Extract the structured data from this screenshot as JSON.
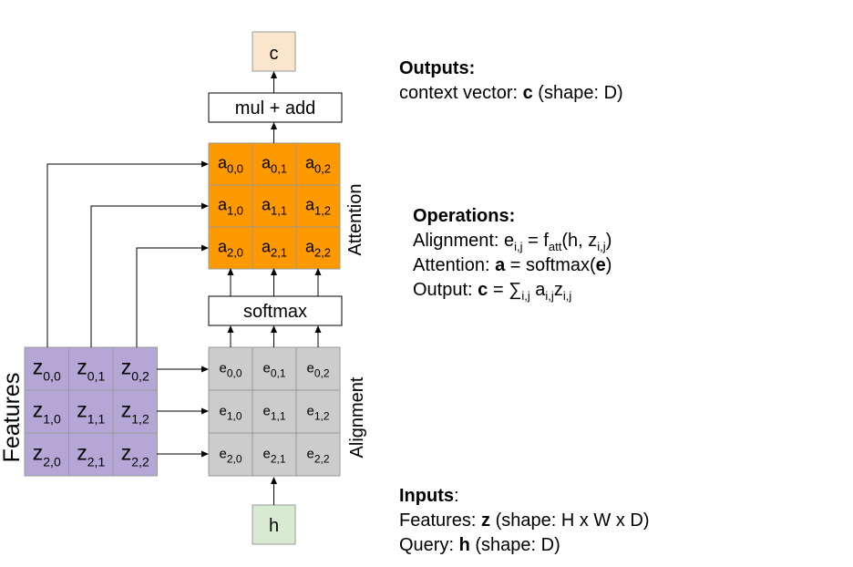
{
  "nodes": {
    "c": "c",
    "h": "h",
    "mul_add": "mul + add",
    "softmax": "softmax"
  },
  "side_labels": {
    "attention": "Attention",
    "alignment": "Alignment",
    "features": "Features"
  },
  "grids": {
    "attention": {
      "letter": "a",
      "subs": [
        [
          "0,0",
          "0,1",
          "0,2"
        ],
        [
          "1,0",
          "1,1",
          "1,2"
        ],
        [
          "2,0",
          "2,1",
          "2,2"
        ]
      ],
      "fill": "#ff9900"
    },
    "alignment": {
      "letter": "e",
      "subs": [
        [
          "0,0",
          "0,1",
          "0,2"
        ],
        [
          "1,0",
          "1,1",
          "1,2"
        ],
        [
          "2,0",
          "2,1",
          "2,2"
        ]
      ],
      "fill": "#cccccc"
    },
    "features": {
      "letter": "z",
      "subs": [
        [
          "0,0",
          "0,1",
          "0,2"
        ],
        [
          "1,0",
          "1,1",
          "1,2"
        ],
        [
          "2,0",
          "2,1",
          "2,2"
        ]
      ],
      "fill": "#b4a7d6"
    }
  },
  "colors": {
    "c_box": "#fce5cd",
    "h_box": "#d9ead3",
    "stroke": "#999999"
  },
  "outputs": {
    "heading": "Outputs:",
    "prefix": "context vector: ",
    "var": "c",
    "suffix": " (shape: D)"
  },
  "operations": {
    "heading": "Operations:",
    "align_prefix": "Alignment: e",
    "align_sub1": "i,j",
    "align_mid": " = f",
    "align_sub2": "att",
    "align_mid2": "(h, z",
    "align_sub3": "i,j",
    "align_end": ")",
    "attn_prefix": "Attention: ",
    "attn_var": "a",
    "attn_mid": " = softmax(",
    "attn_var2": "e",
    "attn_end": ")",
    "out_prefix": "Output: ",
    "out_var": "c",
    "out_mid": " = ∑",
    "out_sub1": "i,j",
    "out_mid2": " a",
    "out_sub2": "i,j",
    "out_mid3": "z",
    "out_sub3": "i,j"
  },
  "inputs": {
    "heading": "Inputs",
    "heading_colon": ":",
    "features_prefix": "Features: ",
    "features_var": "z",
    "features_suffix": " (shape: H x W x D)",
    "query_prefix": "Query: ",
    "query_var": "h",
    "query_suffix": " (shape: D)"
  }
}
